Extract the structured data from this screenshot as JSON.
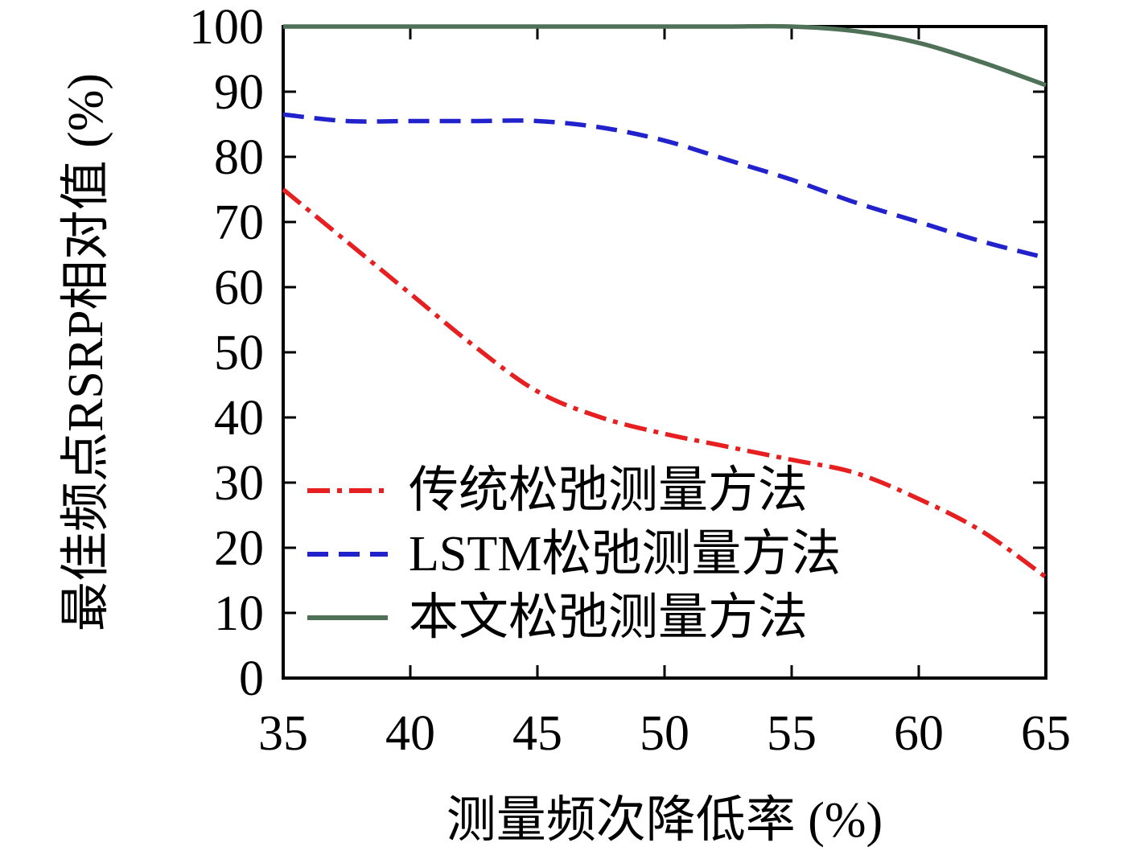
{
  "chart_data": {
    "type": "line",
    "title": "",
    "xlabel": "测量频次降低率 (%)",
    "ylabel": "最佳频点RSRP相对值 (%)",
    "xlim": [
      35,
      65
    ],
    "ylim": [
      0,
      100
    ],
    "xticks": [
      35,
      40,
      45,
      50,
      55,
      60,
      65
    ],
    "yticks": [
      0,
      10,
      20,
      30,
      40,
      50,
      60,
      70,
      80,
      90,
      100
    ],
    "grid": false,
    "legend_position": "inside-lower-left",
    "frame_color": "#000000",
    "series": [
      {
        "name": "传统松弛测量方法",
        "color": "#e62020",
        "style": "dash-dot",
        "x": [
          35,
          37.5,
          40,
          42.5,
          45,
          47.5,
          50,
          52.5,
          55,
          57.5,
          60,
          62.5,
          65
        ],
        "values": [
          75,
          67,
          59,
          51,
          44,
          40,
          37.5,
          35.5,
          33.5,
          31.5,
          27.5,
          22.5,
          15.5
        ]
      },
      {
        "name": "LSTM松弛测量方法",
        "color": "#2222cd",
        "style": "dashed",
        "x": [
          35,
          37.5,
          40,
          42.5,
          45,
          47.5,
          50,
          52.5,
          55,
          57.5,
          60,
          62.5,
          65
        ],
        "values": [
          86.5,
          85.5,
          85.5,
          85.5,
          85.5,
          84.5,
          82.5,
          79.5,
          76.5,
          73,
          70,
          67,
          64.5
        ]
      },
      {
        "name": "本文松弛测量方法",
        "color": "#4e7158",
        "style": "solid",
        "x": [
          35,
          37.5,
          40,
          42.5,
          45,
          47.5,
          50,
          52.5,
          55,
          57.5,
          60,
          62.5,
          65
        ],
        "values": [
          100,
          100,
          100,
          100,
          100,
          100,
          100,
          100,
          100,
          99.3,
          97.5,
          94.5,
          91
        ]
      }
    ]
  }
}
